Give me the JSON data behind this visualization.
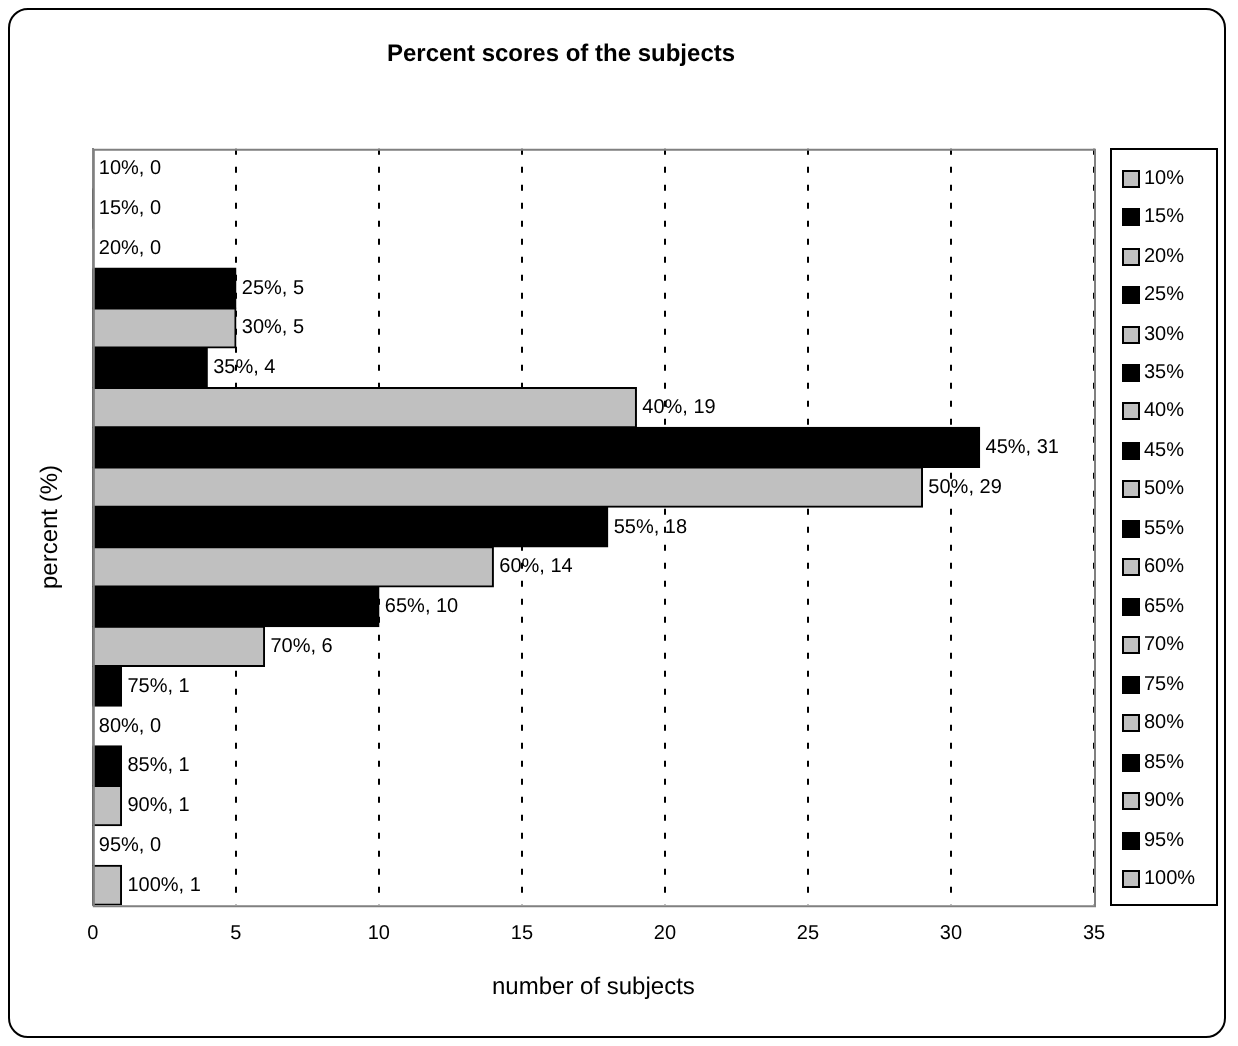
{
  "chart_data": {
    "type": "bar",
    "orientation": "horizontal",
    "stacked": true,
    "title": "Percent scores of the subjects",
    "xlabel": "number of subjects",
    "ylabel": "percent (%)",
    "categories": [
      null,
      null,
      null,
      null,
      null,
      null,
      null,
      null,
      null,
      null,
      null,
      null,
      null,
      null,
      null,
      null,
      null,
      null,
      null
    ],
    "series": [
      {
        "name": "10%",
        "color": "#c0c0c0",
        "values": [
          0,
          null,
          null,
          null,
          null,
          null,
          null,
          null,
          null,
          null,
          null,
          null,
          null,
          null,
          null,
          null,
          null,
          null,
          null
        ],
        "value_labels": [
          "10%, 0",
          null,
          null,
          null,
          null,
          null,
          null,
          null,
          null,
          null,
          null,
          null,
          null,
          null,
          null,
          null,
          null,
          null,
          null
        ]
      },
      {
        "name": "15%",
        "color": "#000000",
        "values": [
          null,
          0,
          null,
          null,
          null,
          null,
          null,
          null,
          null,
          null,
          null,
          null,
          null,
          null,
          null,
          null,
          null,
          null,
          null
        ],
        "value_labels": [
          null,
          "15%, 0",
          null,
          null,
          null,
          null,
          null,
          null,
          null,
          null,
          null,
          null,
          null,
          null,
          null,
          null,
          null,
          null,
          null
        ]
      },
      {
        "name": "20%",
        "color": "#c0c0c0",
        "values": [
          null,
          null,
          0,
          null,
          null,
          null,
          null,
          null,
          null,
          null,
          null,
          null,
          null,
          null,
          null,
          null,
          null,
          null,
          null
        ],
        "value_labels": [
          null,
          null,
          "20%, 0",
          null,
          null,
          null,
          null,
          null,
          null,
          null,
          null,
          null,
          null,
          null,
          null,
          null,
          null,
          null,
          null
        ]
      },
      {
        "name": "25%",
        "color": "#000000",
        "values": [
          null,
          null,
          null,
          5,
          null,
          null,
          null,
          null,
          null,
          null,
          null,
          null,
          null,
          null,
          null,
          null,
          null,
          null,
          null
        ],
        "value_labels": [
          null,
          null,
          null,
          "25%, 5",
          null,
          null,
          null,
          null,
          null,
          null,
          null,
          null,
          null,
          null,
          null,
          null,
          null,
          null,
          null
        ]
      },
      {
        "name": "30%",
        "color": "#c0c0c0",
        "values": [
          null,
          null,
          null,
          null,
          5,
          null,
          null,
          null,
          null,
          null,
          null,
          null,
          null,
          null,
          null,
          null,
          null,
          null,
          null
        ],
        "value_labels": [
          null,
          null,
          null,
          null,
          "30%, 5",
          null,
          null,
          null,
          null,
          null,
          null,
          null,
          null,
          null,
          null,
          null,
          null,
          null,
          null
        ]
      },
      {
        "name": "35%",
        "color": "#000000",
        "values": [
          null,
          null,
          null,
          null,
          null,
          4,
          null,
          null,
          null,
          null,
          null,
          null,
          null,
          null,
          null,
          null,
          null,
          null,
          null
        ],
        "value_labels": [
          null,
          null,
          null,
          null,
          null,
          "35%, 4",
          null,
          null,
          null,
          null,
          null,
          null,
          null,
          null,
          null,
          null,
          null,
          null,
          null
        ]
      },
      {
        "name": "40%",
        "color": "#c0c0c0",
        "values": [
          null,
          null,
          null,
          null,
          null,
          null,
          19,
          null,
          null,
          null,
          null,
          null,
          null,
          null,
          null,
          null,
          null,
          null,
          null
        ],
        "value_labels": [
          null,
          null,
          null,
          null,
          null,
          null,
          "40%, 19",
          null,
          null,
          null,
          null,
          null,
          null,
          null,
          null,
          null,
          null,
          null,
          null
        ]
      },
      {
        "name": "45%",
        "color": "#000000",
        "values": [
          null,
          null,
          null,
          null,
          null,
          null,
          null,
          31,
          null,
          null,
          null,
          null,
          null,
          null,
          null,
          null,
          null,
          null,
          null
        ],
        "value_labels": [
          null,
          null,
          null,
          null,
          null,
          null,
          null,
          "45%, 31",
          null,
          null,
          null,
          null,
          null,
          null,
          null,
          null,
          null,
          null,
          null
        ]
      },
      {
        "name": "50%",
        "color": "#c0c0c0",
        "values": [
          null,
          null,
          null,
          null,
          null,
          null,
          null,
          null,
          29,
          null,
          null,
          null,
          null,
          null,
          null,
          null,
          null,
          null,
          null
        ],
        "value_labels": [
          null,
          null,
          null,
          null,
          null,
          null,
          null,
          null,
          "50%, 29",
          null,
          null,
          null,
          null,
          null,
          null,
          null,
          null,
          null,
          null
        ]
      },
      {
        "name": "55%",
        "color": "#000000",
        "values": [
          null,
          null,
          null,
          null,
          null,
          null,
          null,
          null,
          null,
          18,
          null,
          null,
          null,
          null,
          null,
          null,
          null,
          null,
          null
        ],
        "value_labels": [
          null,
          null,
          null,
          null,
          null,
          null,
          null,
          null,
          null,
          "55%, 18",
          null,
          null,
          null,
          null,
          null,
          null,
          null,
          null,
          null
        ]
      },
      {
        "name": "60%",
        "color": "#c0c0c0",
        "values": [
          null,
          null,
          null,
          null,
          null,
          null,
          null,
          null,
          null,
          null,
          14,
          null,
          null,
          null,
          null,
          null,
          null,
          null,
          null
        ],
        "value_labels": [
          null,
          null,
          null,
          null,
          null,
          null,
          null,
          null,
          null,
          null,
          "60%, 14",
          null,
          null,
          null,
          null,
          null,
          null,
          null,
          null
        ]
      },
      {
        "name": "65%",
        "color": "#000000",
        "values": [
          null,
          null,
          null,
          null,
          null,
          null,
          null,
          null,
          null,
          null,
          null,
          10,
          null,
          null,
          null,
          null,
          null,
          null,
          null
        ],
        "value_labels": [
          null,
          null,
          null,
          null,
          null,
          null,
          null,
          null,
          null,
          null,
          null,
          "65%, 10",
          null,
          null,
          null,
          null,
          null,
          null,
          null
        ]
      },
      {
        "name": "70%",
        "color": "#c0c0c0",
        "values": [
          null,
          null,
          null,
          null,
          null,
          null,
          null,
          null,
          null,
          null,
          null,
          null,
          6,
          null,
          null,
          null,
          null,
          null,
          null
        ],
        "value_labels": [
          null,
          null,
          null,
          null,
          null,
          null,
          null,
          null,
          null,
          null,
          null,
          null,
          "70%, 6",
          null,
          null,
          null,
          null,
          null,
          null
        ]
      },
      {
        "name": "75%",
        "color": "#000000",
        "values": [
          null,
          null,
          null,
          null,
          null,
          null,
          null,
          null,
          null,
          null,
          null,
          null,
          null,
          1,
          null,
          null,
          null,
          null,
          null
        ],
        "value_labels": [
          null,
          null,
          null,
          null,
          null,
          null,
          null,
          null,
          null,
          null,
          null,
          null,
          null,
          "75%, 1",
          null,
          null,
          null,
          null,
          null
        ]
      },
      {
        "name": "80%",
        "color": "#c0c0c0",
        "values": [
          null,
          null,
          null,
          null,
          null,
          null,
          null,
          null,
          null,
          null,
          null,
          null,
          null,
          null,
          0,
          null,
          null,
          null,
          null
        ],
        "value_labels": [
          null,
          null,
          null,
          null,
          null,
          null,
          null,
          null,
          null,
          null,
          null,
          null,
          null,
          null,
          "80%, 0",
          null,
          null,
          null,
          null
        ]
      },
      {
        "name": "85%",
        "color": "#000000",
        "values": [
          null,
          null,
          null,
          null,
          null,
          null,
          null,
          null,
          null,
          null,
          null,
          null,
          null,
          null,
          null,
          1,
          null,
          null,
          null
        ],
        "value_labels": [
          null,
          null,
          null,
          null,
          null,
          null,
          null,
          null,
          null,
          null,
          null,
          null,
          null,
          null,
          null,
          "85%, 1",
          null,
          null,
          null
        ]
      },
      {
        "name": "90%",
        "color": "#c0c0c0",
        "values": [
          null,
          null,
          null,
          null,
          null,
          null,
          null,
          null,
          null,
          null,
          null,
          null,
          null,
          null,
          null,
          null,
          1,
          null,
          null
        ],
        "value_labels": [
          null,
          null,
          null,
          null,
          null,
          null,
          null,
          null,
          null,
          null,
          null,
          null,
          null,
          null,
          null,
          null,
          "90%, 1",
          null,
          null
        ]
      },
      {
        "name": "95%",
        "color": "#000000",
        "values": [
          null,
          null,
          null,
          null,
          null,
          null,
          null,
          null,
          null,
          null,
          null,
          null,
          null,
          null,
          null,
          null,
          null,
          0,
          null
        ],
        "value_labels": [
          null,
          null,
          null,
          null,
          null,
          null,
          null,
          null,
          null,
          null,
          null,
          null,
          null,
          null,
          null,
          null,
          null,
          "95%, 0",
          null
        ]
      },
      {
        "name": "100%",
        "color": "#c0c0c0",
        "values": [
          null,
          null,
          null,
          null,
          null,
          null,
          null,
          null,
          null,
          null,
          null,
          null,
          null,
          null,
          null,
          null,
          null,
          null,
          1
        ],
        "value_labels": [
          null,
          null,
          null,
          null,
          null,
          null,
          null,
          null,
          null,
          null,
          null,
          null,
          null,
          null,
          null,
          null,
          null,
          null,
          "100%, 1"
        ]
      }
    ],
    "xlim": [
      0,
      35
    ],
    "xticks": [
      0,
      5,
      10,
      15,
      20,
      25,
      30,
      35
    ],
    "grid": "x",
    "legend": "right",
    "tick_labels": "x",
    "line_style": "dashed"
  }
}
